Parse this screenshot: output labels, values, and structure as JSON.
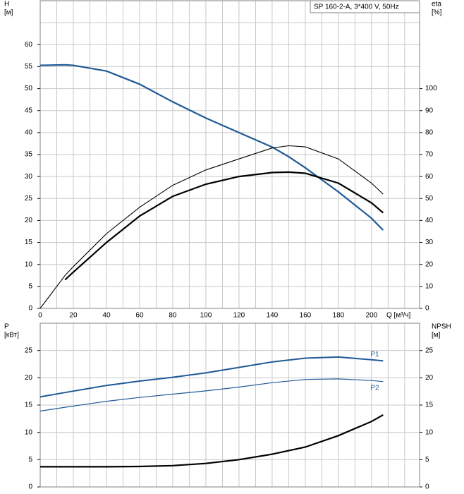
{
  "chart_data": [
    {
      "type": "line",
      "title": "SP 160-2-A, 3*400 V, 50Hz",
      "ylabel": [
        "H",
        "[м]"
      ],
      "y2label": [
        "eta",
        "[%]"
      ],
      "xlabel": "Q [м³/ч]",
      "xlim": [
        0,
        229
      ],
      "xticks": [
        0,
        20,
        40,
        60,
        80,
        100,
        120,
        140,
        160,
        180,
        200
      ],
      "xminorticks": [
        10,
        30,
        50,
        70,
        90,
        110,
        130,
        150,
        170,
        190,
        210,
        220
      ],
      "ylim": [
        0,
        70
      ],
      "yticks": [
        0,
        5,
        10,
        15,
        20,
        25,
        30,
        35,
        40,
        45,
        50,
        55,
        60
      ],
      "yminorticks": [
        65
      ],
      "y2lim": [
        0,
        140
      ],
      "y2ticks": [
        0,
        10,
        20,
        30,
        40,
        50,
        60,
        70,
        80,
        90,
        100
      ],
      "grid": true,
      "series": [
        {
          "color": "#1f5a96",
          "width": 2.2,
          "x": [
            0,
            15,
            20,
            40,
            60,
            80,
            100,
            120,
            140,
            150,
            160,
            180,
            200,
            207
          ],
          "values": [
            55.3,
            55.4,
            55.3,
            54,
            51,
            47,
            43.3,
            40,
            36.7,
            34.5,
            32,
            26.5,
            20.5,
            17.8
          ]
        },
        {
          "color": "#000000",
          "width": 1.1,
          "axis": "y2",
          "x": [
            0,
            15,
            20,
            40,
            60,
            80,
            100,
            120,
            140,
            150,
            160,
            180,
            200,
            207
          ],
          "values": [
            0,
            15,
            19,
            34,
            46,
            56,
            63,
            68,
            73,
            74,
            73.5,
            68,
            57,
            52
          ]
        },
        {
          "color": "#000000",
          "width": 2.2,
          "axis": "y2",
          "x": [
            15,
            20,
            40,
            60,
            80,
            100,
            120,
            140,
            150,
            160,
            180,
            200,
            207
          ],
          "values": [
            13,
            16.5,
            30,
            42,
            51,
            56.5,
            60,
            61.8,
            62,
            61.5,
            57,
            48,
            43.5
          ]
        }
      ]
    },
    {
      "type": "line",
      "ylabel": [
        "P",
        "[кВт]"
      ],
      "y2label": [
        "NPSH",
        "[м]"
      ],
      "ylim": [
        0,
        30
      ],
      "yticks": [
        0,
        5,
        10,
        15,
        20,
        25
      ],
      "y2lim": [
        0,
        30
      ],
      "y2ticks": [
        0,
        5,
        10,
        15,
        20,
        25
      ],
      "grid": true,
      "series": [
        {
          "name": "P1",
          "color": "#1f5a96",
          "width": 2,
          "x": [
            0,
            15,
            40,
            60,
            80,
            100,
            120,
            140,
            160,
            180,
            200,
            207
          ],
          "values": [
            16.5,
            17.3,
            18.6,
            19.4,
            20.1,
            20.9,
            21.9,
            22.9,
            23.6,
            23.8,
            23.3,
            23.1
          ]
        },
        {
          "name": "P2",
          "color": "#1f5a96",
          "width": 1.2,
          "x": [
            0,
            15,
            40,
            60,
            80,
            100,
            120,
            140,
            160,
            180,
            200,
            207
          ],
          "values": [
            13.9,
            14.6,
            15.7,
            16.4,
            17,
            17.6,
            18.3,
            19.1,
            19.7,
            19.8,
            19.5,
            19.3
          ]
        },
        {
          "color": "#000000",
          "width": 2.2,
          "axis": "y2",
          "x": [
            0,
            15,
            40,
            60,
            80,
            100,
            120,
            140,
            160,
            180,
            200,
            207
          ],
          "values": [
            3.7,
            3.7,
            3.7,
            3.75,
            3.9,
            4.3,
            5,
            6,
            7.3,
            9.4,
            12,
            13.2
          ]
        }
      ]
    }
  ]
}
